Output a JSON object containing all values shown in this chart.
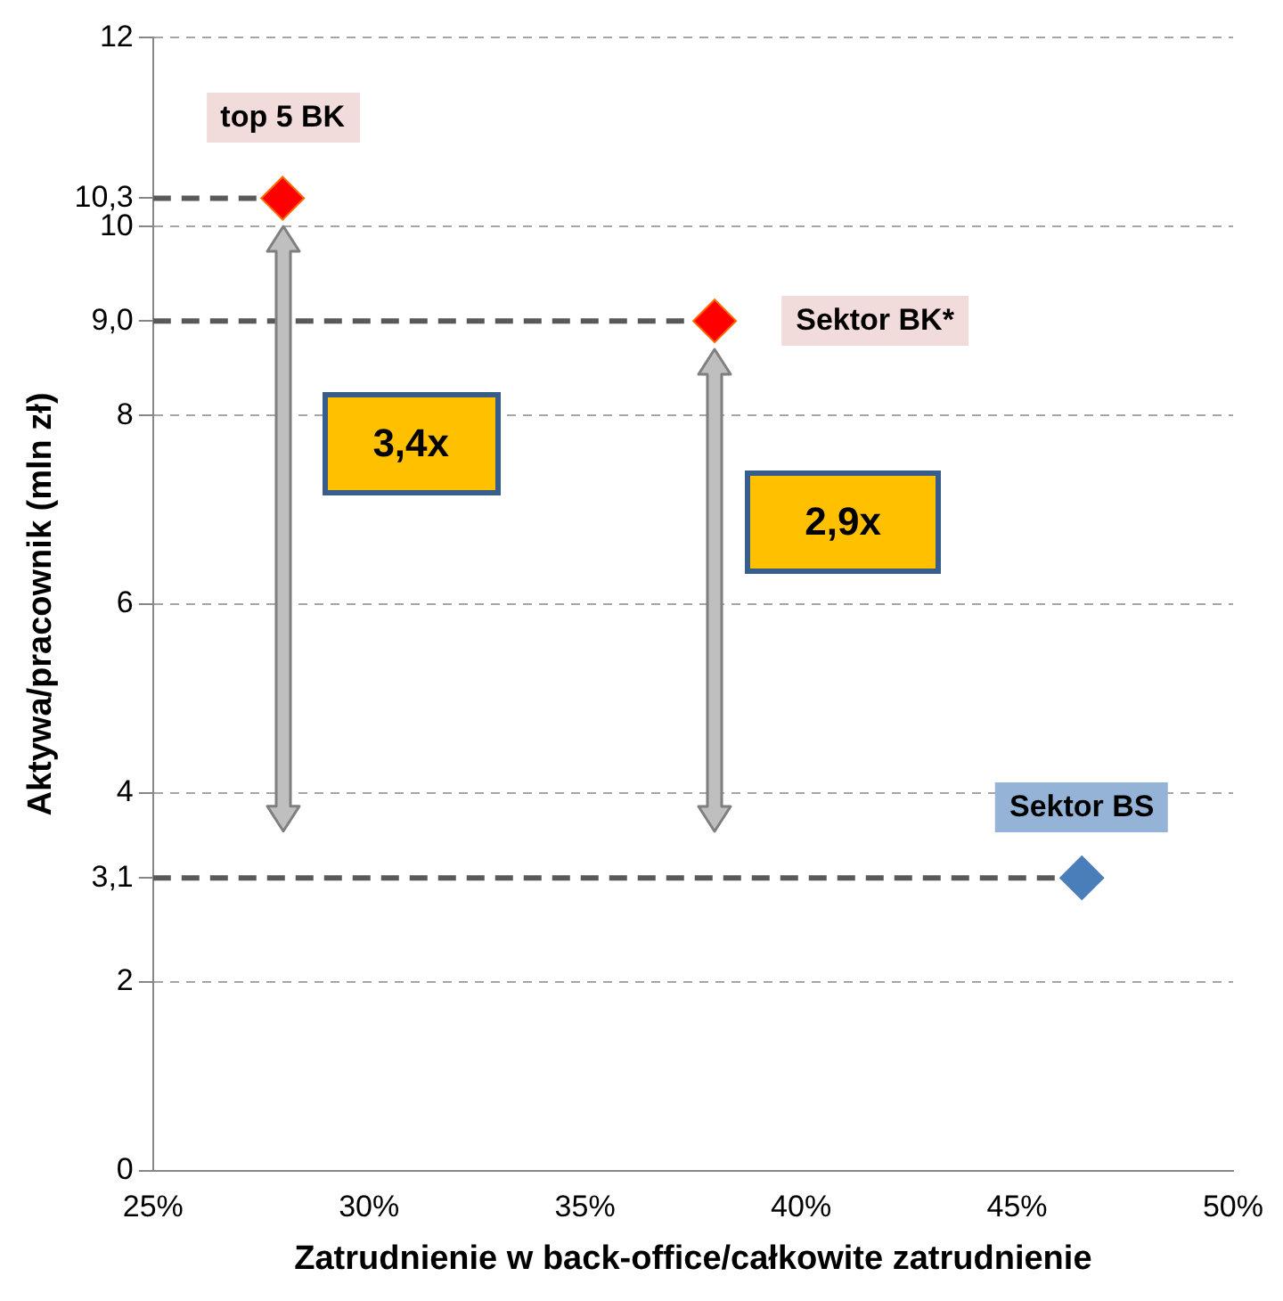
{
  "chart_data": {
    "type": "scatter",
    "xlabel": "Zatrudnienie w back-office/całkowite zatrudnienie",
    "ylabel": "Aktywa/pracownik (mln zł)",
    "xlim": [
      25,
      50
    ],
    "xticks": [
      {
        "value": 25,
        "label": "25%"
      },
      {
        "value": 30,
        "label": "30%"
      },
      {
        "value": 35,
        "label": "35%"
      },
      {
        "value": 40,
        "label": "40%"
      },
      {
        "value": 45,
        "label": "45%"
      },
      {
        "value": 50,
        "label": "50%"
      }
    ],
    "ylim": [
      0,
      12
    ],
    "yticks": [
      0,
      2,
      {
        "value": 3.1,
        "label": "3,1"
      },
      4,
      6,
      8,
      {
        "value": 9.0,
        "label": "9,0"
      },
      10,
      {
        "value": 10.3,
        "label": "10,3"
      },
      12
    ],
    "grid": "y",
    "marker": "diamond",
    "series": [
      {
        "type": "scatter",
        "x": [
          28,
          38,
          46.5
        ],
        "values": [
          10.3,
          9.0,
          3.1
        ],
        "colors": [
          "#ff0000",
          "#ff0000",
          "#4a7ebb"
        ]
      },
      {
        "type": "line",
        "x": [
          25,
          27.5
        ],
        "values": [
          10.3,
          10.3
        ],
        "color": "#595959",
        "line_style": "dashed",
        "marker": "none"
      },
      {
        "type": "line",
        "x": [
          25,
          37.5
        ],
        "values": [
          9.0,
          9.0
        ],
        "color": "#595959",
        "line_style": "dashed",
        "marker": "none"
      },
      {
        "type": "line",
        "x": [
          25,
          46
        ],
        "values": [
          3.1,
          3.1
        ],
        "color": "#595959",
        "line_style": "dashed",
        "marker": "none"
      }
    ],
    "annotations": [
      "top 5 BK",
      "Sektor BK*",
      "Sektor BS",
      "3,4x",
      "2,9x"
    ]
  }
}
